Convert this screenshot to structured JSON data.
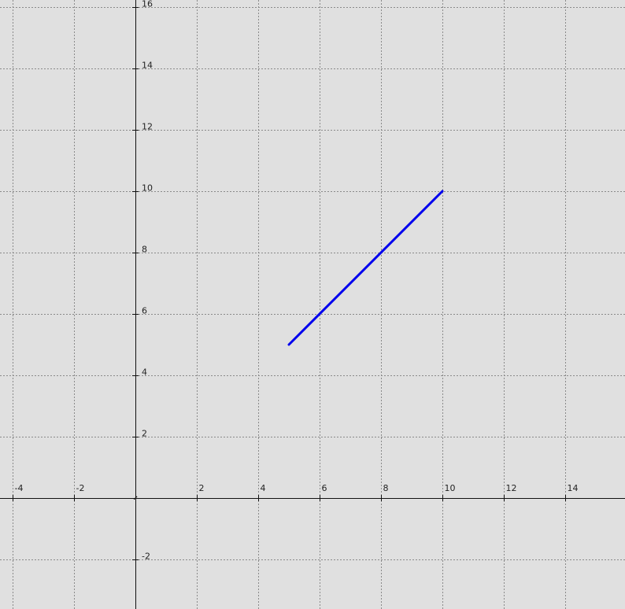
{
  "chart_data": {
    "type": "line",
    "title": "",
    "xlabel": "",
    "ylabel": "",
    "xlim": [
      -4,
      16
    ],
    "ylim": [
      -3.5,
      16
    ],
    "grid": true,
    "x_ticks": [
      -4,
      -2,
      2,
      4,
      6,
      8,
      10,
      12,
      14
    ],
    "y_ticks": [
      -2,
      2,
      4,
      6,
      8,
      10,
      12,
      14,
      16
    ],
    "series": [
      {
        "color": "#0000ee",
        "points": [
          {
            "x": 5,
            "y": 5
          },
          {
            "x": 10,
            "y": 10
          }
        ]
      }
    ]
  },
  "colors": {
    "background": "#e0e0e0",
    "grid": "#8a8a8a",
    "axes": "#111111",
    "series": "#0000ee"
  }
}
